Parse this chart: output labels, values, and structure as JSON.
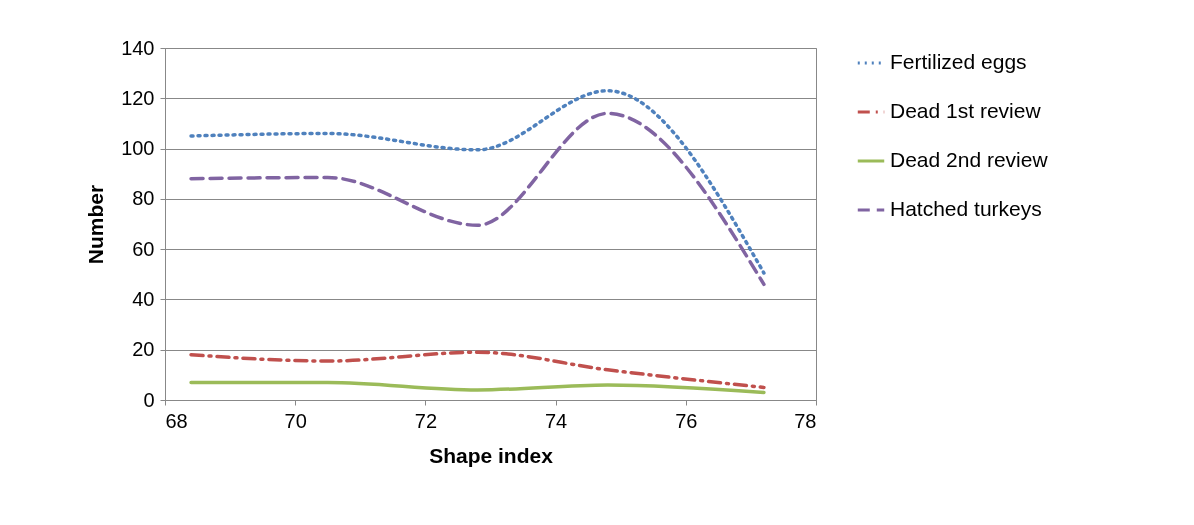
{
  "chart_data": {
    "type": "line",
    "xlabel": "Shape index",
    "ylabel": "Number",
    "x": [
      68.4,
      70.5,
      72.8,
      74.8,
      77.2
    ],
    "series": [
      {
        "name": "Fertilized eggs",
        "color": "#4f81bd",
        "line_style": "dotted",
        "values": [
          105,
          106,
          99.5,
          123,
          50.5
        ]
      },
      {
        "name": "Dead 1st review",
        "color": "#c0504d",
        "line_style": "dashdot",
        "values": [
          18,
          15.5,
          19,
          12,
          5
        ]
      },
      {
        "name": "Dead 2nd review",
        "color": "#9bbb59",
        "line_style": "solid",
        "values": [
          7,
          7,
          4,
          6,
          3
        ]
      },
      {
        "name": "Hatched turkeys",
        "color": "#8064a2",
        "line_style": "dashed",
        "values": [
          88,
          88.5,
          69.5,
          114,
          46
        ]
      }
    ],
    "xlim": [
      68,
      78
    ],
    "xticks": [
      68,
      70,
      72,
      74,
      76,
      78
    ],
    "ylim": [
      0,
      140
    ],
    "yticks": [
      0,
      20,
      40,
      60,
      80,
      100,
      120,
      140
    ],
    "grid": "y",
    "legend": "right",
    "marker": "none"
  }
}
